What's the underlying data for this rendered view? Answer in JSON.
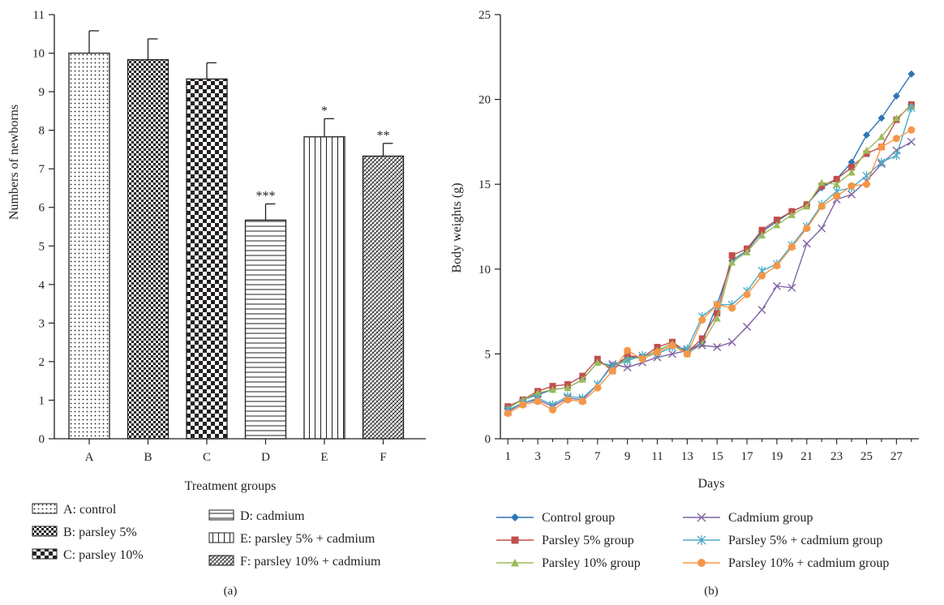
{
  "chart_data": [
    {
      "panel": "(a)",
      "type": "bar",
      "xlabel": "Treatment groups",
      "ylabel": "Numbers of newborns",
      "ylim": [
        0,
        11
      ],
      "yticks": [
        0,
        1,
        2,
        3,
        4,
        5,
        6,
        7,
        8,
        9,
        10,
        11
      ],
      "categories": [
        "A",
        "B",
        "C",
        "D",
        "E",
        "F"
      ],
      "values": [
        10.0,
        9.83,
        9.33,
        5.67,
        7.83,
        7.33
      ],
      "errors": [
        0.58,
        0.54,
        0.42,
        0.42,
        0.47,
        0.33
      ],
      "significance": [
        "",
        "",
        "",
        "***",
        "*",
        "**"
      ],
      "legend": [
        {
          "key": "A",
          "label": "A: control",
          "pattern": "dots"
        },
        {
          "key": "B",
          "label": "B: parsley 5%",
          "pattern": "fine-check"
        },
        {
          "key": "C",
          "label": "C: parsley 10%",
          "pattern": "coarse-check"
        },
        {
          "key": "D",
          "label": "D: cadmium",
          "pattern": "horizontal-lines"
        },
        {
          "key": "E",
          "label": "E: parsley 5% + cadmium",
          "pattern": "vertical-lines"
        },
        {
          "key": "F",
          "label": "F: parsley 10% + cadmium",
          "pattern": "diagonal-hatch"
        }
      ],
      "legend_placement": "bottom"
    },
    {
      "panel": "(b)",
      "type": "line",
      "xlabel": "Days",
      "ylabel": "Body weights (g)",
      "ylim": [
        0,
        25
      ],
      "yticks": [
        0,
        5,
        10,
        15,
        20,
        25
      ],
      "xlim": [
        0.5,
        28.5
      ],
      "xticks": [
        1,
        3,
        5,
        7,
        9,
        11,
        13,
        15,
        17,
        19,
        21,
        23,
        25,
        27
      ],
      "x": [
        1,
        2,
        3,
        4,
        5,
        6,
        7,
        8,
        9,
        10,
        11,
        12,
        13,
        14,
        15,
        16,
        17,
        18,
        19,
        20,
        21,
        22,
        23,
        24,
        25,
        26,
        27,
        28
      ],
      "series": [
        {
          "name": "Control group",
          "color": "#2e75b6",
          "marker": "diamond",
          "values": [
            1.9,
            2.3,
            2.6,
            2.9,
            3.0,
            3.5,
            4.5,
            4.3,
            4.8,
            4.8,
            5.2,
            5.6,
            5.1,
            5.7,
            7.9,
            10.5,
            11.1,
            12.2,
            12.8,
            13.4,
            13.8,
            14.8,
            15.3,
            16.3,
            17.9,
            18.9,
            20.2,
            21.5
          ]
        },
        {
          "name": "Parsley 5% group",
          "color": "#c0504d",
          "marker": "square",
          "values": [
            1.9,
            2.3,
            2.8,
            3.1,
            3.2,
            3.7,
            4.7,
            4.0,
            4.9,
            4.8,
            5.4,
            5.7,
            5.1,
            5.9,
            7.4,
            10.8,
            11.2,
            12.3,
            12.9,
            13.4,
            13.8,
            14.9,
            15.3,
            16.0,
            16.8,
            17.2,
            18.8,
            19.7
          ]
        },
        {
          "name": "Parsley 10% group",
          "color": "#9bbb59",
          "marker": "triangle",
          "values": [
            1.8,
            2.3,
            2.7,
            2.9,
            3.0,
            3.5,
            4.5,
            4.2,
            4.7,
            4.8,
            5.2,
            5.6,
            5.0,
            5.6,
            7.1,
            10.4,
            11.0,
            12.0,
            12.6,
            13.2,
            13.7,
            15.1,
            15.0,
            15.7,
            17.0,
            17.8,
            18.9,
            19.6
          ]
        },
        {
          "name": "Cadmium group",
          "color": "#8064a2",
          "marker": "x",
          "values": [
            1.6,
            2.1,
            2.3,
            1.9,
            2.4,
            2.3,
            3.2,
            4.4,
            4.2,
            4.5,
            4.8,
            5.0,
            5.2,
            5.5,
            5.4,
            5.7,
            6.6,
            7.6,
            9.0,
            8.9,
            11.5,
            12.4,
            14.1,
            14.4,
            15.2,
            16.2,
            17.0,
            17.5
          ]
        },
        {
          "name": "Parsley 5% + cadmium group",
          "color": "#4bacc6",
          "marker": "asterisk",
          "values": [
            1.7,
            2.1,
            2.4,
            2.0,
            2.5,
            2.4,
            3.2,
            4.3,
            4.6,
            4.9,
            5.0,
            5.4,
            5.3,
            7.2,
            7.9,
            7.9,
            8.7,
            9.9,
            10.3,
            11.4,
            12.5,
            13.8,
            14.6,
            14.8,
            15.5,
            16.3,
            16.7,
            19.5
          ]
        },
        {
          "name": "Parsley 10% + cadmium group",
          "color": "#f79646",
          "marker": "circle",
          "values": [
            1.5,
            2.0,
            2.2,
            1.7,
            2.3,
            2.2,
            3.0,
            4.0,
            5.2,
            4.7,
            5.1,
            5.5,
            5.0,
            7.0,
            7.9,
            7.7,
            8.5,
            9.6,
            10.2,
            11.3,
            12.4,
            13.7,
            14.3,
            14.9,
            15.0,
            17.2,
            17.7,
            18.2
          ]
        }
      ],
      "legend_placement": "bottom"
    }
  ]
}
